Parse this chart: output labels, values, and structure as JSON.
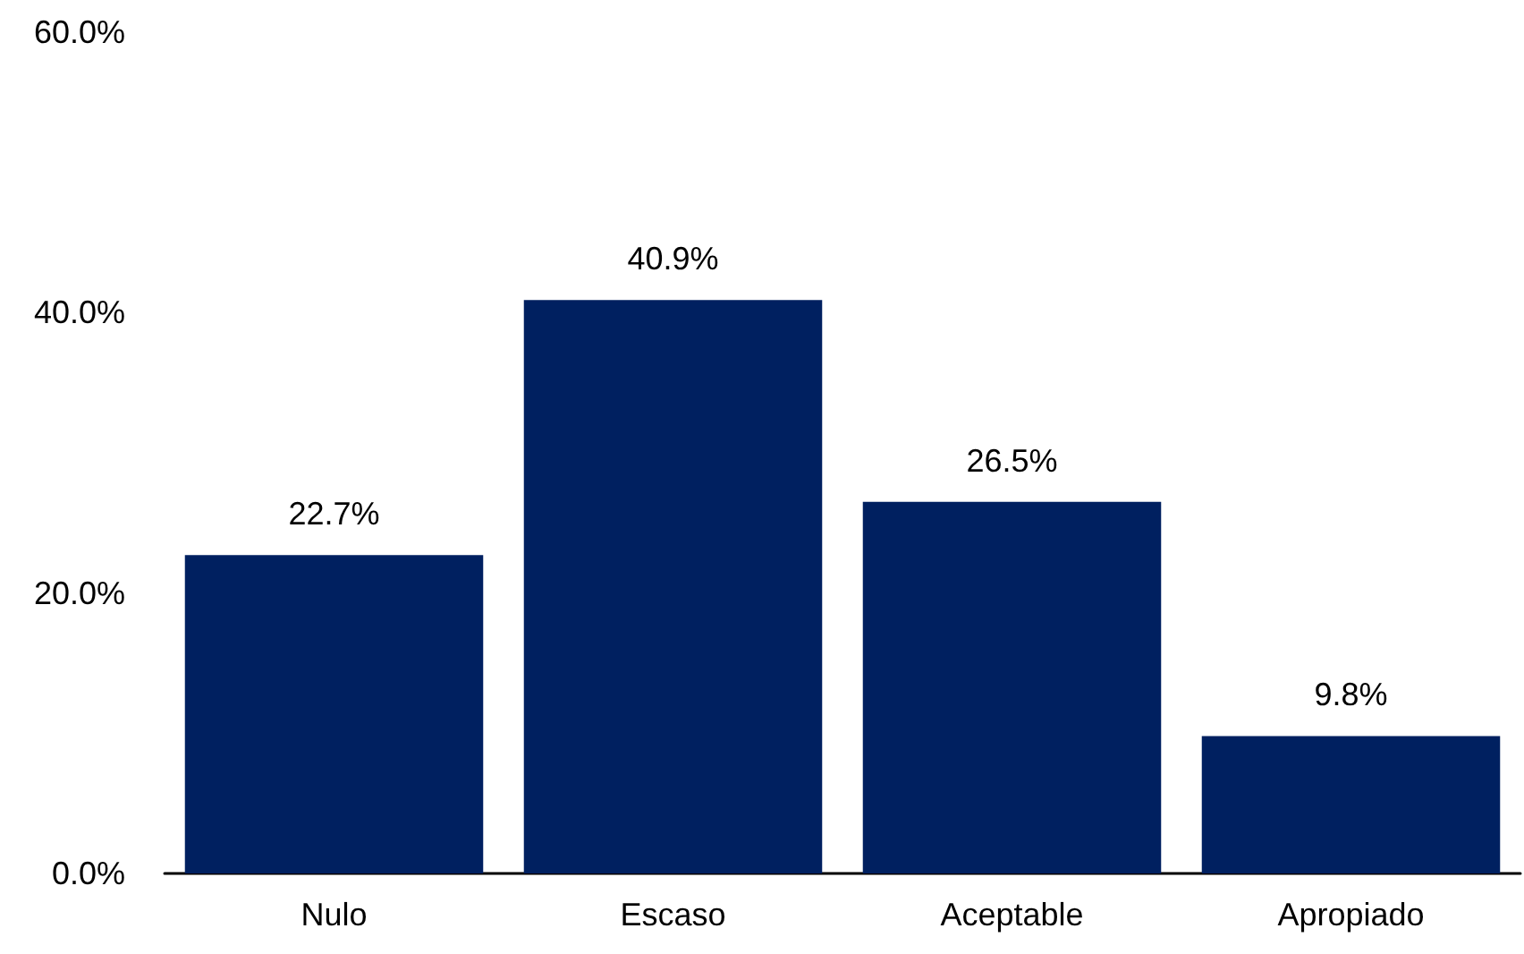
{
  "chart_data": {
    "type": "bar",
    "categories": [
      "Nulo",
      "Escaso",
      "Aceptable",
      "Apropiado"
    ],
    "values": [
      22.7,
      40.9,
      26.5,
      9.8
    ],
    "value_labels": [
      "22.7%",
      "40.9%",
      "26.5%",
      "9.8%"
    ],
    "color": "#002060",
    "ylim": [
      0,
      60
    ],
    "yticks": [
      {
        "value": 0,
        "label": "0.0%"
      },
      {
        "value": 20,
        "label": "20.0%"
      },
      {
        "value": 40,
        "label": "40.0%"
      },
      {
        "value": 60,
        "label": "60.0%"
      }
    ],
    "grid": false
  }
}
